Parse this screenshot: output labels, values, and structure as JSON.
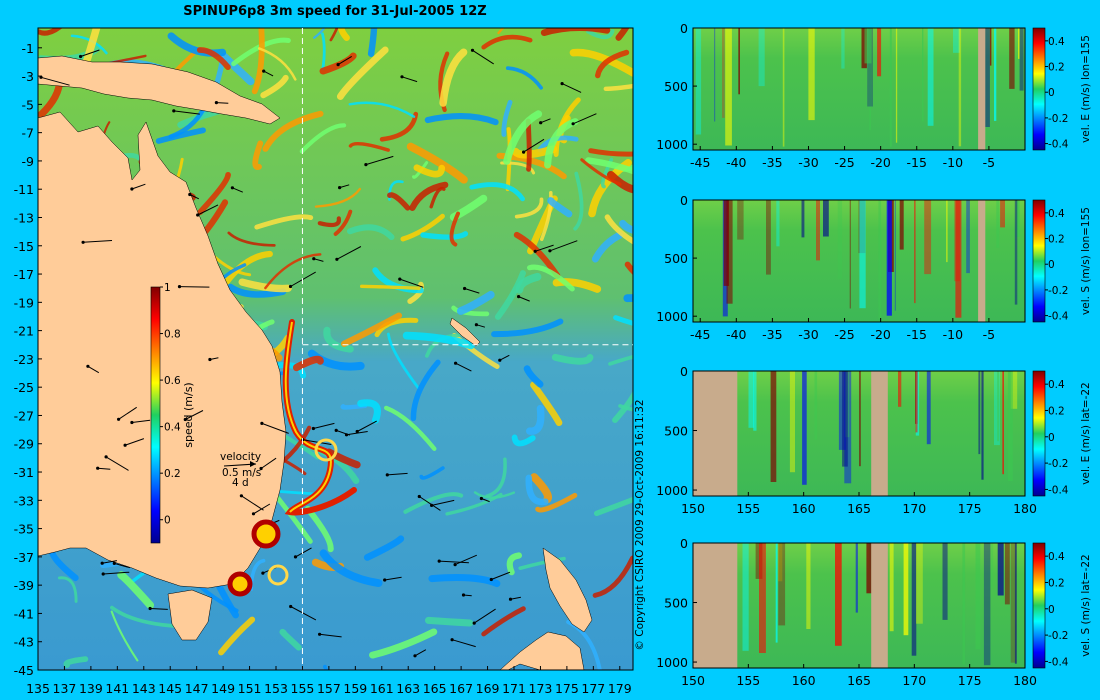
{
  "colors": {
    "background": "#00ccff",
    "land": "#ffcc99",
    "section_land": "#c8ab8c",
    "ocean_base": "#3ea3c9",
    "crosshair": "#ffffff"
  },
  "chart_data": [
    {
      "id": "map",
      "type": "heatmap",
      "title": "SPINUP6p8 3m speed for 31-Jul-2005 12Z",
      "xlabel": "",
      "ylabel": "",
      "x_ticks": [
        135,
        137,
        139,
        141,
        143,
        145,
        147,
        149,
        151,
        153,
        155,
        157,
        159,
        161,
        163,
        165,
        167,
        169,
        171,
        173,
        175,
        177,
        179
      ],
      "y_ticks": [
        -1,
        -3,
        -5,
        -7,
        -9,
        -11,
        -13,
        -15,
        -17,
        -19,
        -21,
        -23,
        -25,
        -27,
        -29,
        -31,
        -33,
        -35,
        -37,
        -39,
        -41,
        -43,
        -45
      ],
      "xlim": [
        135,
        180
      ],
      "ylim": [
        -45,
        0.4
      ],
      "crosshair": {
        "lon": 155,
        "lat": -22
      },
      "colorbar": {
        "label": "speed (m/s)",
        "ticks": [
          0,
          0.2,
          0.4,
          0.6,
          0.8,
          1
        ],
        "range": [
          -0.1,
          1.0
        ]
      },
      "velocity_key": {
        "title": "velocity",
        "speed": "0.5 m/s",
        "period": "4 d"
      },
      "copyright": "© Copyright CSIRO 2009  29-Oct-2009 16:11:32"
    },
    {
      "id": "section-1",
      "type": "heatmap",
      "x_ticks": [
        -45,
        -40,
        -35,
        -30,
        -25,
        -20,
        -15,
        -10,
        -5
      ],
      "xlim": [
        -46,
        0
      ],
      "y_ticks": [
        0,
        500,
        1000
      ],
      "ylim": [
        0,
        1050
      ],
      "colorbar": {
        "label": "vel. E (m/s) lon=155",
        "ticks": [
          -0.4,
          -0.2,
          0,
          0.2,
          0.4
        ],
        "range": [
          -0.45,
          0.5
        ]
      }
    },
    {
      "id": "section-2",
      "type": "heatmap",
      "x_ticks": [
        -45,
        -40,
        -35,
        -30,
        -25,
        -20,
        -15,
        -10,
        -5
      ],
      "xlim": [
        -46,
        0
      ],
      "y_ticks": [
        0,
        500,
        1000
      ],
      "ylim": [
        0,
        1050
      ],
      "colorbar": {
        "label": "vel. S (m/s) lon=155",
        "ticks": [
          -0.4,
          -0.2,
          0,
          0.2,
          0.4
        ],
        "range": [
          -0.45,
          0.5
        ]
      }
    },
    {
      "id": "section-3",
      "type": "heatmap",
      "x_ticks": [
        150,
        155,
        160,
        165,
        170,
        175,
        180
      ],
      "xlim": [
        150,
        180
      ],
      "y_ticks": [
        0,
        500,
        1000
      ],
      "ylim": [
        0,
        1050
      ],
      "colorbar": {
        "label": "vel. E (m/s) lat=-22",
        "ticks": [
          -0.4,
          -0.2,
          0,
          0.2,
          0.4
        ],
        "range": [
          -0.45,
          0.5
        ]
      }
    },
    {
      "id": "section-4",
      "type": "heatmap",
      "x_ticks": [
        150,
        155,
        160,
        165,
        170,
        175,
        180
      ],
      "xlim": [
        150,
        180
      ],
      "y_ticks": [
        0,
        500,
        1000
      ],
      "ylim": [
        0,
        1050
      ],
      "colorbar": {
        "label": "vel. S (m/s) lat=-22",
        "ticks": [
          -0.4,
          -0.2,
          0,
          0.2,
          0.4
        ],
        "range": [
          -0.45,
          0.5
        ]
      }
    }
  ]
}
